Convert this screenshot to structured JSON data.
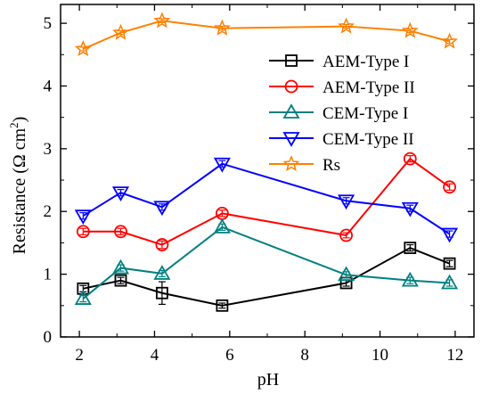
{
  "chart_data": {
    "type": "line",
    "title": "",
    "xlabel": "pH",
    "ylabel": "Resistance (Ω cm²)",
    "ylabel_parts": {
      "main": "Resistance (Ω cm",
      "sup": "2",
      "close": ")"
    },
    "xlim": [
      1.5,
      12.5
    ],
    "ylim": [
      0,
      5.3
    ],
    "xticks": [
      2,
      4,
      6,
      8,
      10,
      12
    ],
    "yticks": [
      0,
      1,
      2,
      3,
      4,
      5
    ],
    "grid": false,
    "legend_position": "right",
    "series": [
      {
        "name": "AEM-Type I",
        "color": "#000000",
        "marker": "square",
        "x": [
          2.1,
          3.1,
          4.2,
          5.8,
          9.1,
          10.8,
          11.85
        ],
        "y": [
          0.77,
          0.9,
          0.7,
          0.5,
          0.86,
          1.42,
          1.17
        ],
        "err": [
          0.05,
          0.05,
          0.18,
          0.04,
          0.05,
          0.05,
          0.05
        ]
      },
      {
        "name": "AEM-Type II",
        "color": "#ff0000",
        "marker": "circle",
        "x": [
          2.1,
          3.1,
          4.2,
          5.8,
          9.1,
          10.8,
          11.85
        ],
        "y": [
          1.68,
          1.68,
          1.47,
          1.97,
          1.62,
          2.84,
          2.39
        ],
        "err": [
          0.05,
          0.05,
          0.06,
          0.05,
          0.04,
          0.05,
          0.05
        ]
      },
      {
        "name": "CEM-Type I",
        "color": "#008080",
        "marker": "triangle-up",
        "x": [
          2.1,
          3.1,
          4.2,
          5.8,
          9.1,
          10.8,
          11.85
        ],
        "y": [
          0.61,
          1.1,
          1.01,
          1.75,
          0.99,
          0.9,
          0.86
        ],
        "err": [
          0.05,
          0.05,
          0.05,
          0.05,
          0.05,
          0.05,
          0.05
        ]
      },
      {
        "name": "CEM-Type II",
        "color": "#0000ff",
        "marker": "triangle-down",
        "x": [
          2.1,
          3.1,
          4.2,
          5.8,
          9.1,
          10.8,
          11.85
        ],
        "y": [
          1.93,
          2.3,
          2.07,
          2.76,
          2.17,
          2.05,
          1.64
        ],
        "err": [
          0.05,
          0.05,
          0.05,
          0.05,
          0.05,
          0.05,
          0.05
        ]
      },
      {
        "name": "Rs",
        "color": "#ff8000",
        "marker": "star",
        "x": [
          2.1,
          3.1,
          4.2,
          5.8,
          9.1,
          10.8,
          11.85
        ],
        "y": [
          4.59,
          4.85,
          5.04,
          4.92,
          4.95,
          4.88,
          4.71
        ],
        "err": [
          0.03,
          0.03,
          0.03,
          0.03,
          0.03,
          0.03,
          0.03
        ]
      }
    ]
  }
}
